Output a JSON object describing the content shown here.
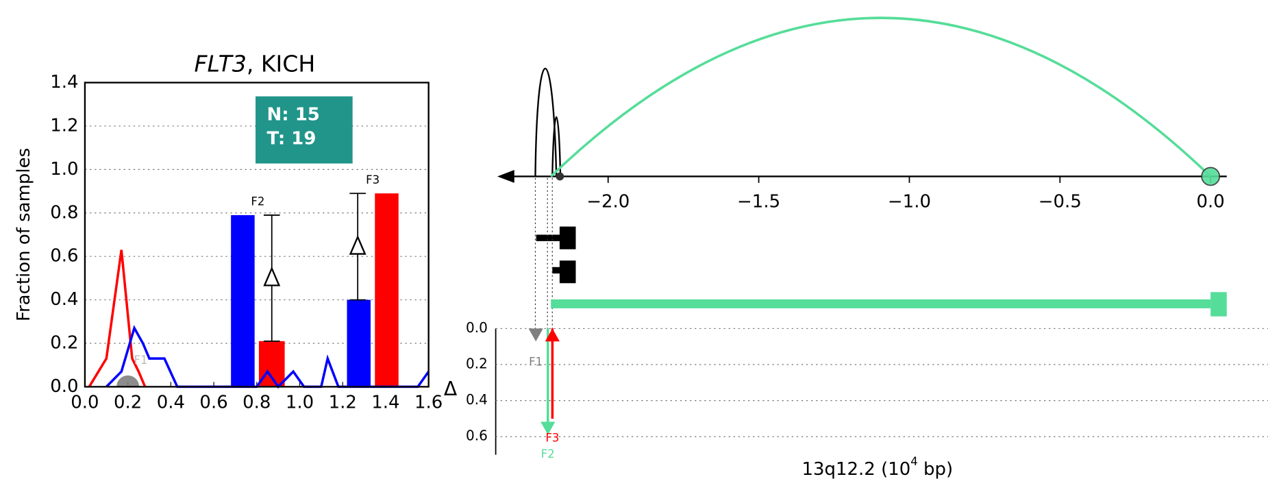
{
  "chart_data": [
    {
      "type": "bar",
      "title_gene": "FLT3",
      "title_rest": ", KICH",
      "ylabel": "Fraction of samples",
      "xlim": [
        0,
        1.6
      ],
      "xticks": [
        {
          "value": 0,
          "label": "0.0"
        },
        {
          "value": 0.2,
          "label": "0.2"
        },
        {
          "value": 0.4,
          "label": "0.4"
        },
        {
          "value": 0.6,
          "label": "0.6"
        },
        {
          "value": 0.8,
          "label": "0.8"
        },
        {
          "value": 1,
          "label": "1.0"
        },
        {
          "value": 1.2,
          "label": "1.2"
        },
        {
          "value": 1.4,
          "label": "1.4"
        },
        {
          "value": 1.6,
          "label": "1.6"
        }
      ],
      "ylim": [
        0,
        1.4
      ],
      "yticks": [
        {
          "value": 0,
          "label": "0.0"
        },
        {
          "value": 0.2,
          "label": "0.2"
        },
        {
          "value": 0.4,
          "label": "0.4"
        },
        {
          "value": 0.6,
          "label": "0.6"
        },
        {
          "value": 0.8,
          "label": "0.8"
        },
        {
          "value": 1,
          "label": "1.0"
        },
        {
          "value": 1.2,
          "label": "1.2"
        },
        {
          "value": 1.4,
          "label": "1.4"
        }
      ],
      "grid": true,
      "annotation_box": [
        "N: 15",
        "T: 19"
      ],
      "box_color": "#21958a",
      "normal_color": "#0000ff",
      "tumor_color": "#ff0000",
      "groups": [
        {
          "label": "F2",
          "normal_x": [
            0.68,
            0.79
          ],
          "normal": 0.79,
          "tumor_x": [
            0.81,
            0.93
          ],
          "tumor": 0.21,
          "delta_x": 0.87
        },
        {
          "label": "F3",
          "normal_x": [
            1.22,
            1.33
          ],
          "normal": 0.4,
          "tumor_x": [
            1.35,
            1.46
          ],
          "tumor": 0.89,
          "delta_x": 1.27
        }
      ],
      "lines": [
        {
          "color": "#ff0000",
          "x": [
            0.02,
            0.1,
            0.17,
            0.22,
            0.25,
            0.28,
            null,
            0.8,
            0.85,
            0.9
          ],
          "values": [
            0,
            0.13,
            0.63,
            0.13,
            0.07,
            0,
            null,
            0,
            0.05,
            0
          ]
        },
        {
          "color": "#0000ff",
          "x": [
            0.1,
            0.17,
            0.23,
            0.27,
            0.3,
            0.37,
            0.43,
            0.8,
            0.85,
            0.9,
            0.97,
            1.02,
            1.1,
            1.13,
            1.18,
            1.55,
            1.6
          ],
          "values": [
            0,
            0.07,
            0.27,
            0.2,
            0.13,
            0.13,
            0,
            0,
            0.07,
            0,
            0.07,
            0,
            0,
            0.13,
            0,
            0,
            0.07
          ]
        }
      ],
      "markers": [
        {
          "label": "F1",
          "x": 0.2,
          "value": 0,
          "color": "#808080"
        }
      ]
    },
    {
      "type": "arc",
      "xlim": [
        -2.37,
        0.05
      ],
      "xticks": [
        {
          "value": -2,
          "label": "−2.0"
        },
        {
          "value": -1.5,
          "label": "−1.5"
        },
        {
          "value": -1,
          "label": "−1.0"
        },
        {
          "value": -0.5,
          "label": "−0.5"
        },
        {
          "value": 0,
          "label": "0.0"
        }
      ],
      "arcs": [
        {
          "x": [
            -2.19,
            0.0
          ],
          "color": "#55dd99"
        }
      ],
      "points": [
        {
          "x": -2.16,
          "color": "#333333"
        }
      ],
      "span": {
        "x": [
          -2.19,
          0.0
        ],
        "color": "#55dd99"
      }
    },
    {
      "type": "arrow",
      "ylim": [
        0,
        0.7
      ],
      "reversed": true,
      "yticks": [
        {
          "value": 0,
          "label": "0.0"
        },
        {
          "value": 0.2,
          "label": "0.2"
        },
        {
          "value": 0.4,
          "label": "0.4"
        },
        {
          "value": 0.6,
          "label": "0.6"
        }
      ],
      "grid": true,
      "ylabel": "Δ",
      "xlabel": "13q12.2 (10",
      "xlabel_sup": "4",
      "xlabel_end": " bp)",
      "arrows": [
        {
          "label": "F1",
          "x": -2.24,
          "value": 0,
          "color": "#808080"
        },
        {
          "label": "F2",
          "x": -2.2,
          "value": 0.58,
          "color": "#55dd99"
        },
        {
          "label": "F3",
          "x": -2.185,
          "value": 0.5,
          "color": "#ff0000"
        }
      ]
    }
  ]
}
